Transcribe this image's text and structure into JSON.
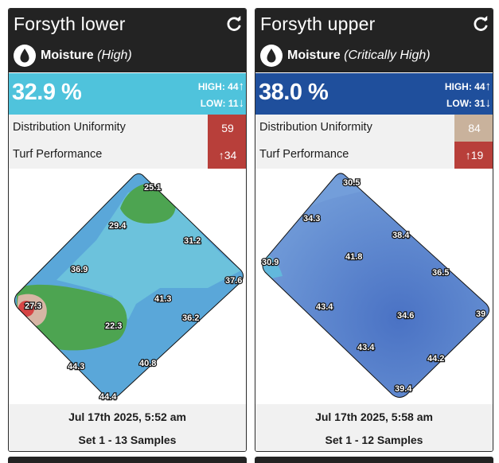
{
  "cards": [
    {
      "title": "Forsyth lower",
      "sensor": "Moisture",
      "status": "(High)",
      "reading": "32.9 %",
      "high_label": "HIGH: 44",
      "low_label": "LOW: 11",
      "metrics": [
        {
          "label": "Distribution Uniformity",
          "value": "59"
        },
        {
          "label": "Turf Performance",
          "value": "34",
          "arrow": "↑"
        }
      ],
      "map_labels": [
        "25.1",
        "29.4",
        "31.2",
        "36.9",
        "37.6",
        "27.3",
        "41.3",
        "36.2",
        "22.3",
        "44.3",
        "40.8",
        "44.4"
      ],
      "date": "Jul 17th 2025, 5:52 am",
      "set": "Set 1 - 13 Samples"
    },
    {
      "title": "Forsyth upper",
      "sensor": "Moisture",
      "status": "(Critically High)",
      "reading": "38.0 %",
      "high_label": "HIGH: 44",
      "low_label": "LOW: 31",
      "metrics": [
        {
          "label": "Distribution Uniformity",
          "value": "84"
        },
        {
          "label": "Turf Performance",
          "value": "19",
          "arrow": "↑"
        }
      ],
      "map_labels": [
        "30.5",
        "34.3",
        "38.4",
        "41.8",
        "30.9",
        "36.5",
        "43.4",
        "34.6",
        "39",
        "43.4",
        "44.2",
        "39.4"
      ],
      "date": "Jul 17th 2025, 5:58 am",
      "set": "Set 1 - 12 Samples"
    }
  ],
  "icons": {
    "refresh": "refresh-icon",
    "moisture": "water-drop-icon",
    "up": "arrow-up-icon",
    "down": "arrow-down-icon"
  },
  "colors": {
    "header": "#232323",
    "high_moisture": "#4fc3dc",
    "critical_moisture": "#1f4f9c",
    "red_badge": "#b83f3a",
    "tan_badge": "#c9b29c"
  }
}
